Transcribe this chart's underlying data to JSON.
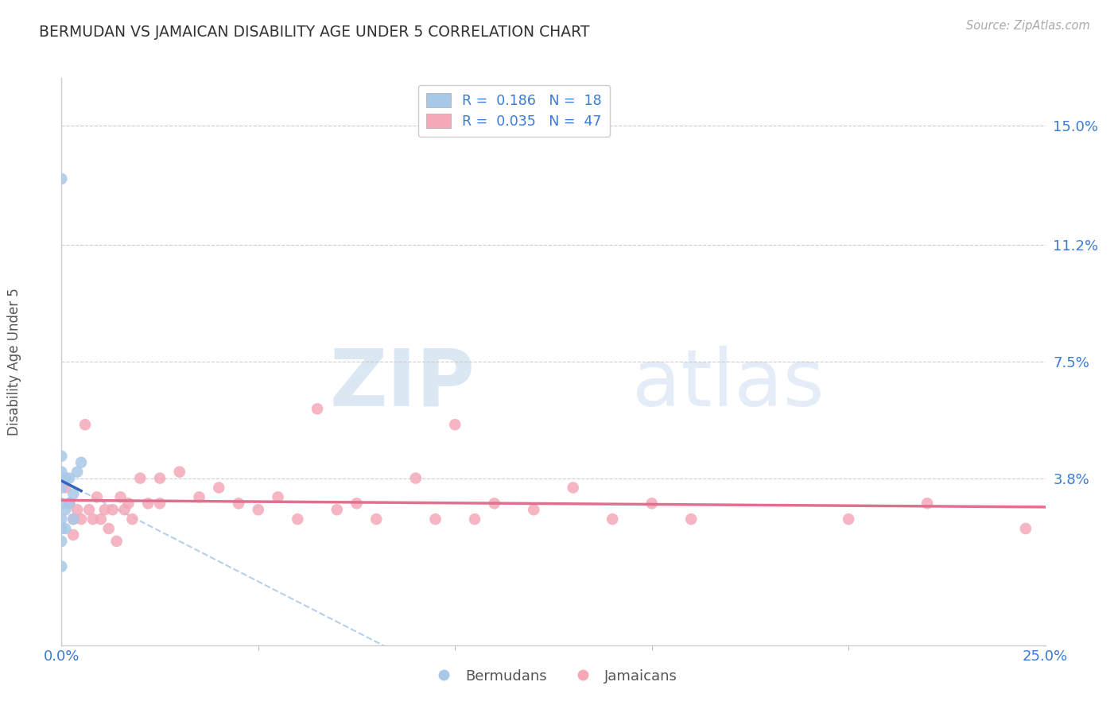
{
  "title": "BERMUDAN VS JAMAICAN DISABILITY AGE UNDER 5 CORRELATION CHART",
  "source": "Source: ZipAtlas.com",
  "ylabel": "Disability Age Under 5",
  "ytick_labels": [
    "15.0%",
    "11.2%",
    "7.5%",
    "3.8%"
  ],
  "ytick_values": [
    0.15,
    0.112,
    0.075,
    0.038
  ],
  "xlim": [
    0.0,
    0.25
  ],
  "ylim": [
    -0.015,
    0.165
  ],
  "legend_r_blue": "R =  0.186",
  "legend_n_blue": "N =  18",
  "legend_r_pink": "R =  0.035",
  "legend_n_pink": "N =  47",
  "watermark_zip": "ZIP",
  "watermark_atlas": "atlas",
  "blue_color": "#a8c8e8",
  "pink_color": "#f4a8b8",
  "blue_line_color": "#3366bb",
  "pink_line_color": "#e07090",
  "blue_dash_color": "#a8c8e8",
  "bermudans_x": [
    0.0,
    0.0,
    0.0,
    0.0,
    0.0,
    0.0,
    0.0,
    0.0,
    0.0,
    0.001,
    0.001,
    0.001,
    0.002,
    0.002,
    0.003,
    0.003,
    0.004,
    0.005
  ],
  "bermudans_y": [
    0.133,
    0.045,
    0.04,
    0.035,
    0.03,
    0.025,
    0.022,
    0.018,
    0.01,
    0.038,
    0.028,
    0.022,
    0.038,
    0.03,
    0.033,
    0.025,
    0.04,
    0.043
  ],
  "jamaicans_x": [
    0.001,
    0.002,
    0.003,
    0.003,
    0.004,
    0.005,
    0.006,
    0.007,
    0.008,
    0.009,
    0.01,
    0.011,
    0.012,
    0.013,
    0.014,
    0.015,
    0.016,
    0.017,
    0.018,
    0.02,
    0.022,
    0.025,
    0.025,
    0.03,
    0.035,
    0.04,
    0.045,
    0.05,
    0.055,
    0.06,
    0.065,
    0.07,
    0.075,
    0.08,
    0.09,
    0.095,
    0.1,
    0.105,
    0.11,
    0.12,
    0.13,
    0.14,
    0.15,
    0.16,
    0.2,
    0.22,
    0.245
  ],
  "jamaicans_y": [
    0.035,
    0.03,
    0.025,
    0.02,
    0.028,
    0.025,
    0.055,
    0.028,
    0.025,
    0.032,
    0.025,
    0.028,
    0.022,
    0.028,
    0.018,
    0.032,
    0.028,
    0.03,
    0.025,
    0.038,
    0.03,
    0.038,
    0.03,
    0.04,
    0.032,
    0.035,
    0.03,
    0.028,
    0.032,
    0.025,
    0.06,
    0.028,
    0.03,
    0.025,
    0.038,
    0.025,
    0.055,
    0.025,
    0.03,
    0.028,
    0.035,
    0.025,
    0.03,
    0.025,
    0.025,
    0.03,
    0.022
  ]
}
